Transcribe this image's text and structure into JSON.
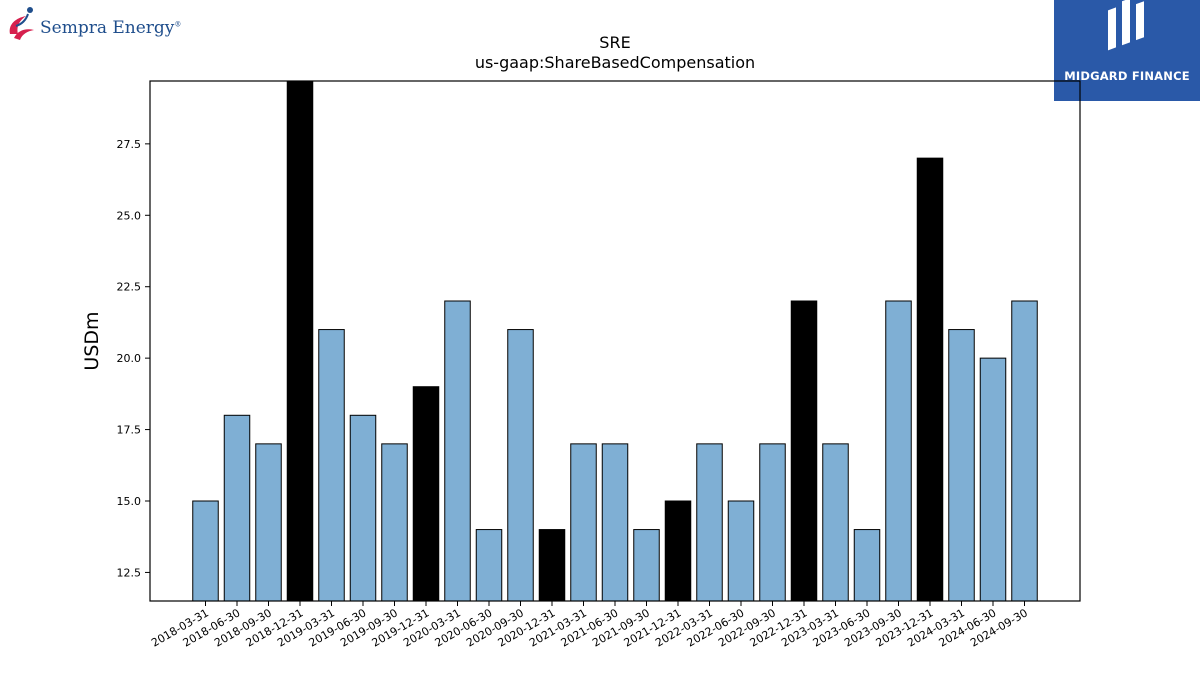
{
  "logos": {
    "left": {
      "name": "Sempra Energy",
      "mark": "®",
      "color": "#1f4e8c",
      "accent": "#d6204e"
    },
    "right": {
      "name": "MIDGARD FINANCE",
      "background": "#2a59a8"
    }
  },
  "chart_data": {
    "type": "bar",
    "title": "SRE",
    "subtitle": "us-gaap:ShareBasedCompensation",
    "xlabel": "",
    "ylabel": "USDm",
    "ylim": [
      11.5,
      29.7
    ],
    "yticks": [
      12.5,
      15.0,
      17.5,
      20.0,
      22.5,
      25.0,
      27.5
    ],
    "grid": false,
    "legend": "none",
    "colors": {
      "quarter": "#7fafd4",
      "year_end": "#000000",
      "edge": "#000000"
    },
    "categories": [
      "2018-03-31",
      "2018-06-30",
      "2018-09-30",
      "2018-12-31",
      "2019-03-31",
      "2019-06-30",
      "2019-09-30",
      "2019-12-31",
      "2020-03-31",
      "2020-06-30",
      "2020-09-30",
      "2020-12-31",
      "2021-03-31",
      "2021-06-30",
      "2021-09-30",
      "2021-12-31",
      "2022-03-31",
      "2022-06-30",
      "2022-09-30",
      "2022-12-31",
      "2023-03-31",
      "2023-06-30",
      "2023-09-30",
      "2023-12-31",
      "2024-03-31",
      "2024-06-30",
      "2024-09-30"
    ],
    "values": [
      15,
      18,
      17,
      30,
      21,
      18,
      17,
      19,
      22,
      14,
      21,
      14,
      17,
      17,
      14,
      15,
      17,
      15,
      17,
      22,
      17,
      14,
      22,
      27,
      21,
      20,
      22
    ]
  }
}
